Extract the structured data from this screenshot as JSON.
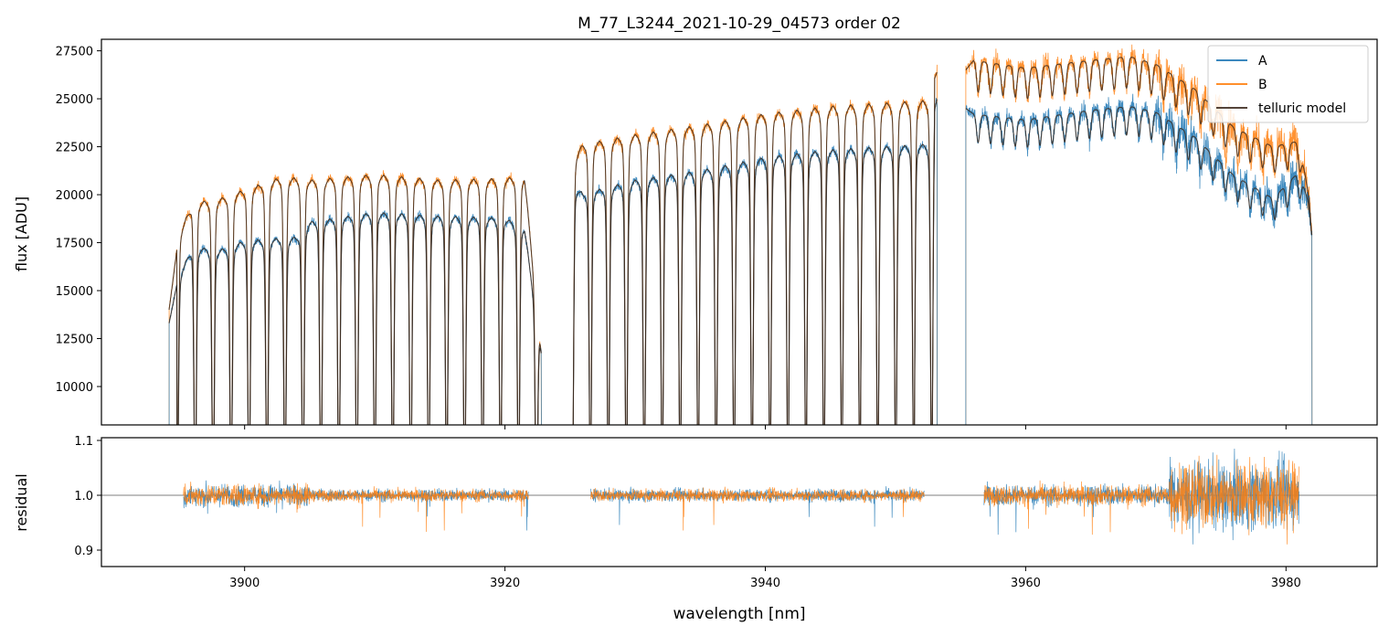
{
  "chart_data": [
    {
      "panel": "top",
      "type": "line",
      "title": "M_77_L3244_2021-10-29_04573  order 02",
      "xlabel": "",
      "ylabel": "flux [ADU]",
      "xlim": [
        3889,
        3987
      ],
      "ylim": [
        8000,
        28100
      ],
      "yticks": [
        10000,
        12500,
        15000,
        17500,
        20000,
        22500,
        25000,
        27500
      ],
      "ytick_labels": [
        "10000",
        "12500",
        "15000",
        "17500",
        "20000",
        "22500",
        "25000",
        "27500"
      ],
      "xticks": [
        3900,
        3920,
        3940,
        3960,
        3980
      ],
      "legend": {
        "placement": "top-right",
        "entries": [
          "A",
          "B",
          "telluric model"
        ]
      },
      "series": [
        {
          "name": "A",
          "color": "#1f77b4",
          "segments": [
            {
              "x": [
                3894.2,
                3895.0,
                3896.0,
                3898.0,
                3900.0,
                3904.0,
                3905.0,
                3910.0,
                3915.0,
                3920.0,
                3921.5,
                3922.8
              ],
              "y": [
                13300,
                16000,
                17500,
                17300,
                17800,
                18000,
                18800,
                19300,
                19100,
                19000,
                18500,
                12000
              ]
            },
            {
              "x": [
                3925.2,
                3926.0,
                3930.0,
                3935.0,
                3940.0,
                3945.0,
                3950.0,
                3952.5,
                3953.2
              ],
              "y": [
                20800,
                20300,
                21000,
                21500,
                22200,
                22600,
                22800,
                22900,
                25000
              ]
            },
            {
              "x": [
                3955.4,
                3956.0,
                3960.0,
                3965.0,
                3968.0,
                3970.0,
                3973.0,
                3976.0,
                3979.0,
                3981.0,
                3982.0
              ],
              "y": [
                24500,
                24200,
                23900,
                24400,
                24600,
                24300,
                23000,
                21000,
                19800,
                21200,
                19000
              ]
            }
          ]
        },
        {
          "name": "B",
          "color": "#ff7f0e",
          "segments": [
            {
              "x": [
                3894.2,
                3895.0,
                3896.0,
                3898.0,
                3900.0,
                3903.0,
                3905.0,
                3910.0,
                3915.0,
                3920.0,
                3921.5,
                3922.8
              ],
              "y": [
                14000,
                18200,
                19800,
                20000,
                20500,
                21200,
                21000,
                21300,
                21000,
                21100,
                21200,
                12000
              ]
            },
            {
              "x": [
                3925.2,
                3926.0,
                3930.0,
                3935.0,
                3940.0,
                3945.0,
                3950.0,
                3952.5,
                3953.2
              ],
              "y": [
                22200,
                22900,
                23400,
                23900,
                24500,
                24900,
                25100,
                25200,
                26400
              ]
            },
            {
              "x": [
                3955.4,
                3956.0,
                3960.0,
                3965.0,
                3968.0,
                3970.0,
                3973.0,
                3976.0,
                3979.0,
                3981.0,
                3982.0
              ],
              "y": [
                26500,
                27000,
                26600,
                27000,
                27200,
                26800,
                25500,
                23500,
                22500,
                22800,
                19000
              ]
            }
          ]
        },
        {
          "name": "telluric model",
          "color": "#3b2a1e",
          "role": "model"
        }
      ]
    },
    {
      "panel": "bottom",
      "type": "line",
      "title": "",
      "xlabel": "wavelength [nm]",
      "ylabel": "residual",
      "xlim": [
        3889,
        3987
      ],
      "ylim": [
        0.87,
        1.105
      ],
      "yticks": [
        0.9,
        1.0,
        1.1
      ],
      "ytick_labels": [
        "0.9",
        "1.0",
        "1.1"
      ],
      "xticks": [
        3900,
        3920,
        3940,
        3960,
        3980
      ],
      "xtick_labels": [
        "3900",
        "3920",
        "3940",
        "3960",
        "3980"
      ],
      "reference_line": 1.0,
      "series": [
        {
          "name": "A",
          "color": "#1f77b4",
          "center": 1.0,
          "segments": [
            [
              3895.3,
              3921.8
            ],
            [
              3926.6,
              3952.2
            ],
            [
              3956.8,
              3981.0
            ]
          ]
        },
        {
          "name": "B",
          "color": "#ff7f0e",
          "center": 1.0,
          "segments": [
            [
              3895.3,
              3921.8
            ],
            [
              3926.6,
              3952.2
            ],
            [
              3956.8,
              3981.0
            ]
          ]
        }
      ]
    }
  ]
}
